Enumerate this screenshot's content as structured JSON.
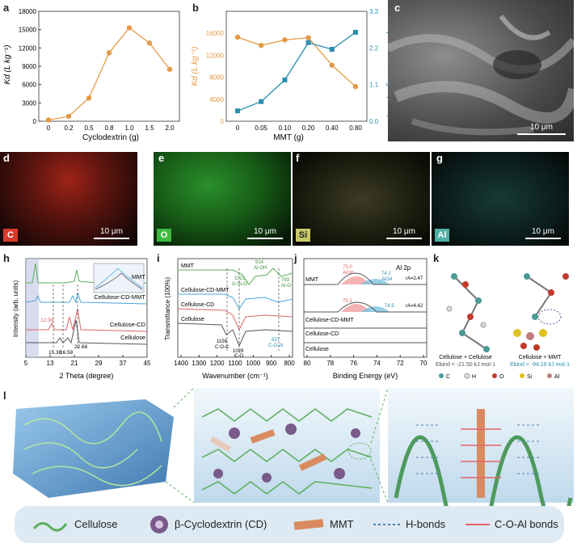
{
  "panel_labels": {
    "a": "a",
    "b": "b",
    "c": "c",
    "d": "d",
    "e": "e",
    "f": "f",
    "g": "g",
    "h": "h",
    "i": "i",
    "j": "j",
    "k": "k",
    "l": "l"
  },
  "colors": {
    "orange": "#E39A45",
    "teal": "#2C8FB0",
    "green": "#5BAE5B",
    "blue": "#4AA6D6",
    "red": "#E06666",
    "gray": "#555555"
  },
  "chart_data": [
    {
      "id": "a",
      "type": "line",
      "xlabel": "Cyclodextrin (g)",
      "ylabel": "Kd (L kg-1)",
      "x": [
        "0",
        "0.2",
        "0.5",
        "0.8",
        "1.0",
        "1.5",
        "2.0"
      ],
      "values": [
        200,
        800,
        3800,
        11200,
        15300,
        12800,
        8500
      ],
      "yticks": [
        "0",
        "3000",
        "6000",
        "9000",
        "12000",
        "15000",
        "18000"
      ],
      "ylim": [
        0,
        18000
      ]
    },
    {
      "id": "b",
      "type": "line",
      "xlabel": "MMT (g)",
      "ylabel_left": "Kd (L kg-1)",
      "ylabel_right": "Compressive strength (MPa)",
      "x": [
        "0",
        "0.05",
        "0.10",
        "0.20",
        "0.40",
        "0.80"
      ],
      "series": [
        {
          "values": [
            15300,
            13800,
            14800,
            15200,
            10200,
            6300
          ],
          "axis": "left"
        },
        {
          "values": [
            0.31,
            0.59,
            1.24,
            2.36,
            2.16,
            2.67
          ],
          "axis": "right"
        }
      ],
      "yticks_left": [
        "0",
        "4000",
        "8000",
        "12000",
        "16000"
      ],
      "yticks_right": [
        "0.0",
        "1.1",
        "2.2",
        "3.3"
      ],
      "ylim_left": [
        0,
        20000
      ],
      "ylim_right": [
        0,
        3.3
      ]
    },
    {
      "id": "h",
      "type": "line",
      "xlabel": "2 Theta (degree)",
      "ylabel": "Intensity (arb. units)",
      "xticks": [
        "5",
        "13",
        "21",
        "29",
        "37",
        "45"
      ],
      "series": [
        {
          "name": "MMT"
        },
        {
          "name": "Cellulose-CD-MMT"
        },
        {
          "name": "Cellulose-CD"
        },
        {
          "name": "Cellulose"
        }
      ],
      "annotations": [
        "12.98",
        "15.38",
        "16.58",
        "22.68"
      ]
    },
    {
      "id": "i",
      "type": "line",
      "xlabel": "Wavenumber (cm-1)",
      "ylabel": "Transmittance (100%)",
      "xticks": [
        "1400",
        "1300",
        "1200",
        "1100",
        "1000",
        "900",
        "800"
      ],
      "series": [
        {
          "name": "MMT"
        },
        {
          "name": "Cellulose-CD-MMT"
        },
        {
          "name": "Cellulose-CD"
        },
        {
          "name": "Cellulose"
        }
      ],
      "annotations": [
        "914",
        "Al-OH",
        "1021",
        "O-Si-O",
        "793",
        "Al-O",
        "1156",
        "C-O-C",
        "1029",
        "C-O",
        "837",
        "C-O-Al"
      ]
    },
    {
      "id": "j",
      "type": "line",
      "title": "Al 2p",
      "xlabel": "Binding Energy (eV)",
      "xticks": [
        "80",
        "78",
        "76",
        "74",
        "72",
        "70"
      ],
      "series": [
        {
          "name": "MMT"
        },
        {
          "name": "Cellulose-CD-MMT"
        },
        {
          "name": "Cellulose-CD"
        },
        {
          "name": "Cellulose"
        }
      ],
      "annotations": [
        "75.0",
        "AlO6",
        "74.2",
        "AlO4",
        "rA=2.47",
        "75.3",
        "74.5",
        "rA=4.42"
      ]
    }
  ],
  "sem": {
    "scale": "10 μm"
  },
  "maps": [
    {
      "tag": "C",
      "scale": "10 μm",
      "color": "#D93A2B"
    },
    {
      "tag": "O",
      "scale": "10 μm",
      "color": "#3DBA3D"
    },
    {
      "tag": "Si",
      "scale": "10 μm",
      "color": "#C8C86A"
    },
    {
      "tag": "Al",
      "scale": "10 μm",
      "color": "#4FB0A5"
    }
  ],
  "k": {
    "left_title": "Cellulose + Cellulose",
    "left_energy": "Ebind = -21.50 kJ mol-1",
    "right_title": "Cellulose + MMT",
    "right_energy": "Ebind = -94.16 kJ mol-1",
    "atoms": [
      "C",
      "H",
      "O",
      "Si",
      "Al"
    ]
  },
  "legend": [
    "Cellulose",
    "β-Cyclodextrin (CD)",
    "MMT",
    "H-bonds",
    "C-O-Al bonds"
  ]
}
